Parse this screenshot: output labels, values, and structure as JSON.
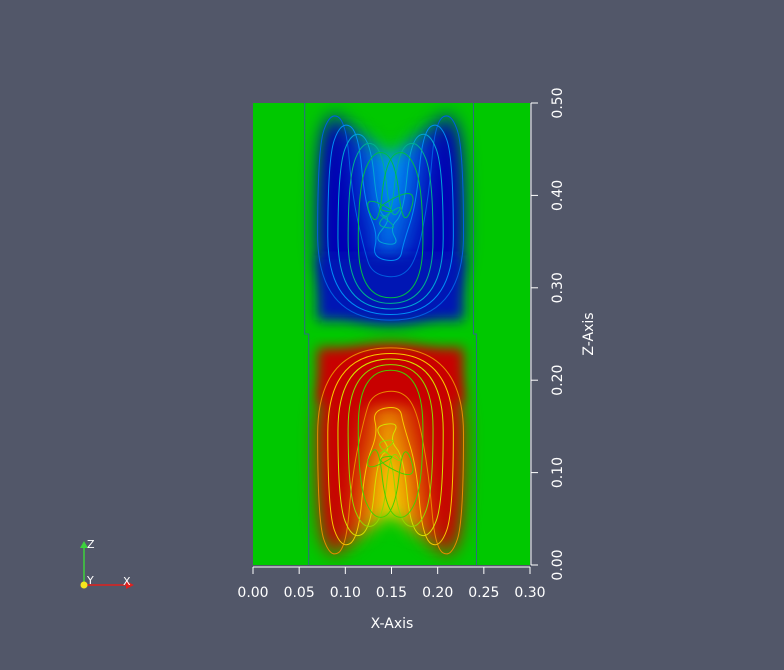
{
  "chart_data": {
    "type": "heatmap",
    "title": "",
    "xlabel": "X-Axis",
    "ylabel": "Z-Axis",
    "xlim": [
      0.0,
      0.3
    ],
    "ylim": [
      0.0,
      0.5
    ],
    "x_ticks": [
      "0.00",
      "0.05",
      "0.10",
      "0.15",
      "0.20",
      "0.25",
      "0.30"
    ],
    "y_ticks": [
      "0.00",
      "0.10",
      "0.20",
      "0.30",
      "0.40",
      "0.50"
    ],
    "x_tick_values": [
      0.0,
      0.05,
      0.1,
      0.15,
      0.2,
      0.25,
      0.3
    ],
    "y_tick_values": [
      0.0,
      0.1,
      0.2,
      0.3,
      0.4,
      0.5
    ],
    "colormap": [
      "#0000b4",
      "#00a0ff",
      "#00c800",
      "#ffe600",
      "#c80000"
    ],
    "background_color": "#00c800",
    "channel": {
      "x": [
        0.056,
        0.242
      ],
      "z": [
        0.0,
        0.5
      ]
    },
    "upper_region": {
      "x": [
        0.07,
        0.228
      ],
      "z": [
        0.265,
        0.49
      ],
      "color": "#0019b4"
    },
    "lower_region": {
      "x": [
        0.07,
        0.228
      ],
      "z": [
        0.008,
        0.235
      ],
      "color": "#c80000"
    },
    "contour_lines_per_region": 5
  },
  "orientation_triad": {
    "x_label": "X",
    "y_label": "Y",
    "z_label": "Z",
    "x_color": "#e0201e",
    "y_color": "#f5e61e",
    "z_color": "#3cd23c"
  }
}
